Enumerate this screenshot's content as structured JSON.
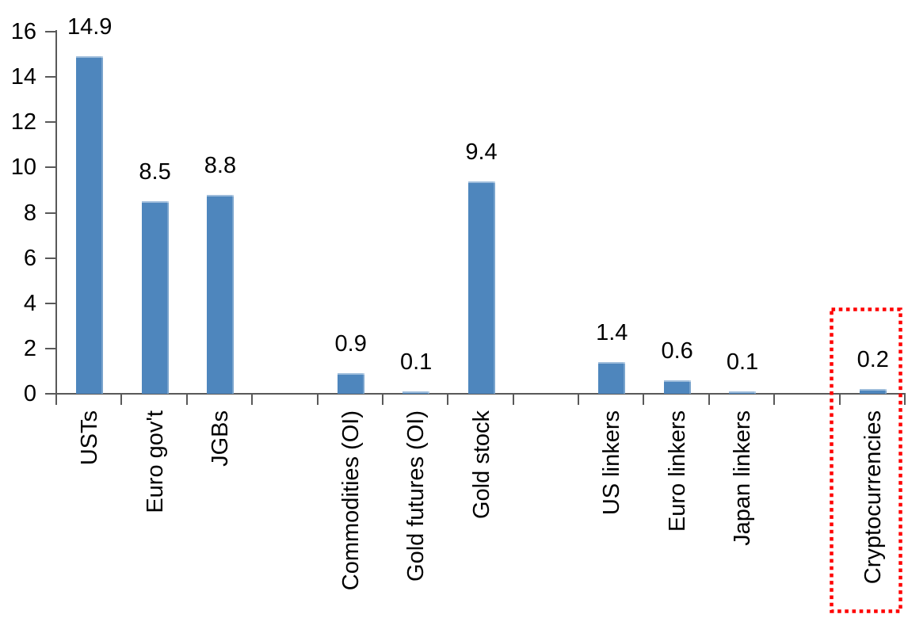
{
  "chart_data": {
    "type": "bar",
    "title": "",
    "xlabel": "",
    "ylabel": "",
    "categories": [
      "USTs",
      "Euro gov't",
      "JGBs",
      "Commodities (OI)",
      "Gold futures (OI)",
      "Gold stock",
      "US linkers",
      "Euro linkers",
      "Japan linkers",
      "Cryptocurrencies"
    ],
    "values": [
      14.9,
      8.5,
      8.8,
      0.9,
      0.1,
      9.4,
      1.4,
      0.6,
      0.1,
      0.2
    ],
    "data_labels": [
      "14.9",
      "8.5",
      "8.8",
      "0.9",
      "0.1",
      "9.4",
      "1.4",
      "0.6",
      "0.1",
      "0.2"
    ],
    "group_slots": [
      0,
      1,
      2,
      4,
      5,
      6,
      8,
      9,
      10,
      12
    ],
    "total_slots": 13,
    "y_ticks": [
      0,
      2,
      4,
      6,
      8,
      10,
      12,
      14,
      16
    ],
    "ylim": [
      0,
      16
    ],
    "grid": "off",
    "legend": "none",
    "category_label_rotation_deg": -90,
    "colors": {
      "bar_fill": "#4E86BD",
      "bar_edge_highlight": "#A9C4DF",
      "axis": "#595959",
      "text": "#000000"
    },
    "annotation": {
      "type": "dotted-box",
      "category": "Cryptocurrencies",
      "box_color": "#FF0000"
    }
  }
}
